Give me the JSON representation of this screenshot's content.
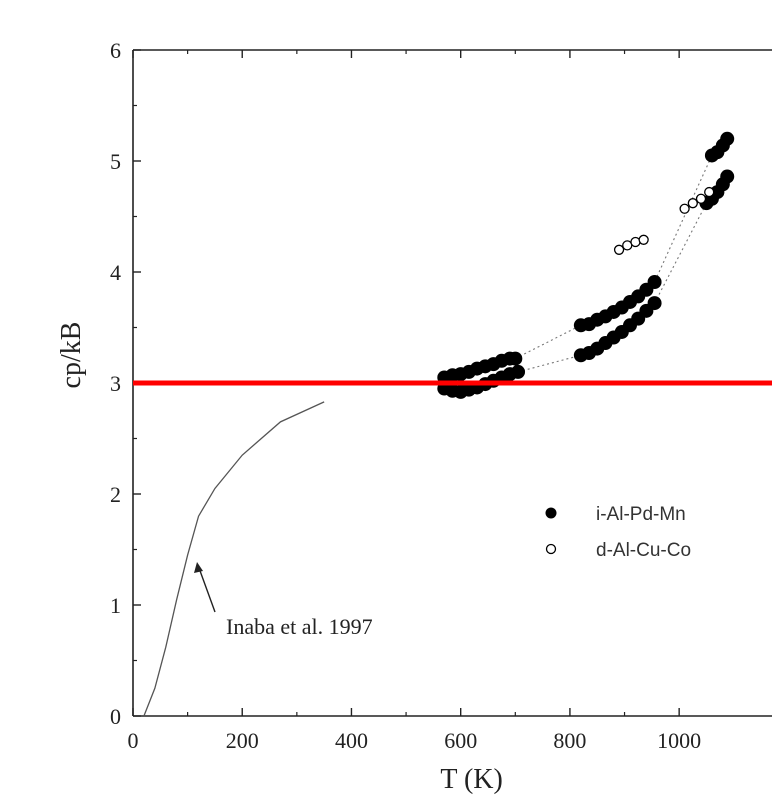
{
  "chart_data": {
    "type": "scatter",
    "title": "",
    "xlabel": "T (K)",
    "ylabel": "cp/kB",
    "xlim": [
      0,
      1150
    ],
    "ylim": [
      0,
      6
    ],
    "x_ticks": [
      "0",
      "200",
      "400",
      "600",
      "800",
      "1000"
    ],
    "y_ticks": [
      "0",
      "1",
      "2",
      "3",
      "4",
      "5",
      "6"
    ],
    "grid": false,
    "legend_position": "right",
    "reference_line": {
      "y": 3,
      "color": "#ff0000"
    },
    "series": [
      {
        "name": "i-Al-Pd-Mn",
        "marker": "filled-circle",
        "color": "#000000",
        "x": [
          570,
          585,
          600,
          615,
          630,
          645,
          660,
          675,
          690,
          700,
          820,
          835,
          850,
          865,
          880,
          895,
          910,
          925,
          940,
          955,
          1060,
          1070,
          1080,
          1088,
          570,
          585,
          600,
          615,
          630,
          645,
          660,
          675,
          690,
          705,
          820,
          835,
          850,
          865,
          880,
          895,
          910,
          925,
          940,
          955,
          1050,
          1060,
          1070,
          1080,
          1088
        ],
        "y": [
          3.05,
          3.07,
          3.08,
          3.1,
          3.13,
          3.15,
          3.17,
          3.2,
          3.22,
          3.22,
          3.52,
          3.53,
          3.57,
          3.6,
          3.64,
          3.68,
          3.73,
          3.78,
          3.84,
          3.91,
          5.05,
          5.08,
          5.14,
          5.2,
          2.95,
          2.93,
          2.92,
          2.94,
          2.96,
          2.99,
          3.02,
          3.05,
          3.08,
          3.1,
          3.25,
          3.27,
          3.31,
          3.36,
          3.41,
          3.46,
          3.52,
          3.58,
          3.65,
          3.72,
          4.62,
          4.66,
          4.72,
          4.79,
          4.86
        ]
      },
      {
        "name": "d-Al-Cu-Co",
        "marker": "open-circle",
        "color": "#000000",
        "x": [
          890,
          905,
          920,
          935,
          1010,
          1025,
          1040,
          1055
        ],
        "y": [
          4.2,
          4.24,
          4.27,
          4.29,
          4.57,
          4.62,
          4.66,
          4.72
        ]
      }
    ],
    "reference_curve": {
      "label": "Inaba et al. 1997",
      "x": [
        20,
        40,
        60,
        80,
        100,
        120,
        150,
        200,
        270,
        350
      ],
      "y": [
        0.0,
        0.25,
        0.62,
        1.05,
        1.45,
        1.8,
        2.05,
        2.35,
        2.65,
        2.83
      ]
    },
    "connector_lines": [
      {
        "x": [
          700,
          820,
          955,
          1060
        ],
        "y": [
          3.22,
          3.52,
          3.91,
          5.05
        ]
      },
      {
        "x": [
          705,
          820,
          955,
          1050
        ],
        "y": [
          3.1,
          3.25,
          3.72,
          4.62
        ]
      }
    ]
  }
}
